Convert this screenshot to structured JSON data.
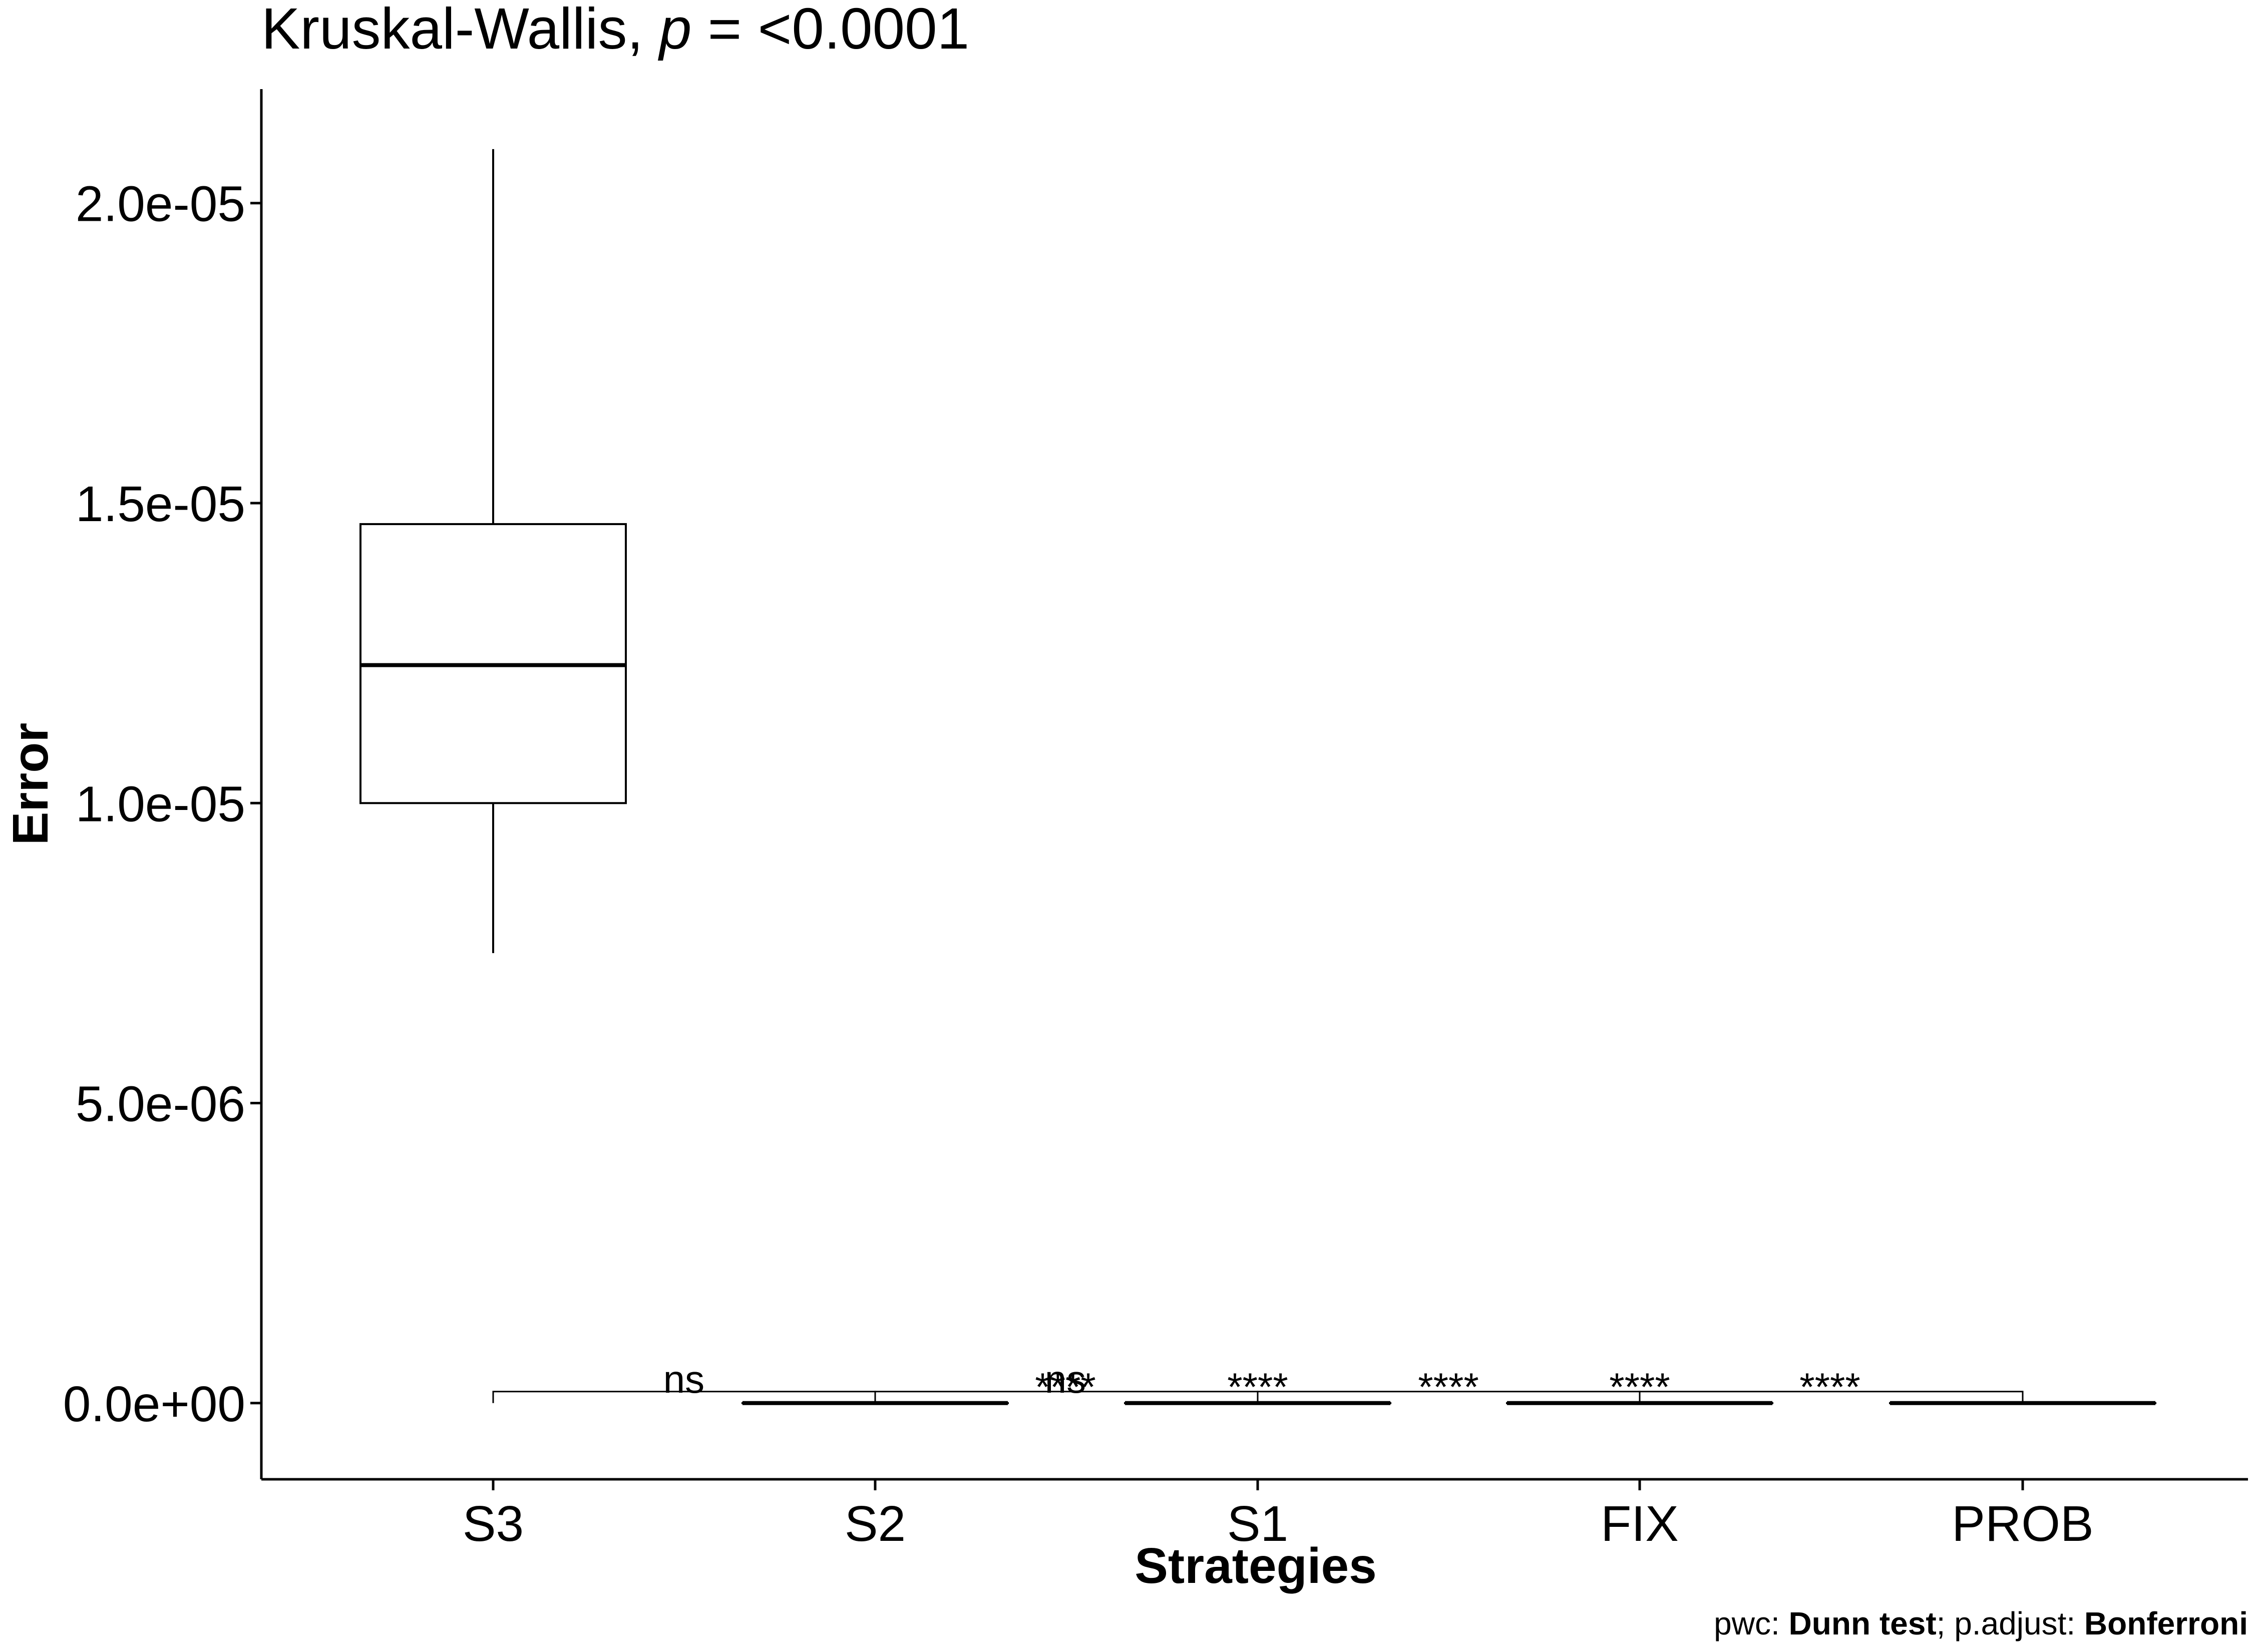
{
  "chart_data": {
    "type": "box",
    "title": {
      "prefix": "Kruskal-Wallis, ",
      "p_symbol": "p",
      "suffix": " = <0.0001"
    },
    "xlabel": "Strategies",
    "ylabel": "Error",
    "categories": [
      "S3",
      "S2",
      "S1",
      "FIX",
      "PROB"
    ],
    "ylim": [
      -1.27e-06,
      2.19e-05
    ],
    "yticks": [
      0,
      5e-06,
      1e-05,
      1.5e-05,
      2e-05
    ],
    "ytick_labels": [
      "0.0e+00",
      "5.0e-06",
      "1.0e-05",
      "1.5e-05",
      "2.0e-05"
    ],
    "boxes": [
      {
        "category": "S3",
        "min": 7.5e-06,
        "q1": 1e-05,
        "median": 1.23e-05,
        "q3": 1.465e-05,
        "max": 2.09e-05
      },
      {
        "category": "S2",
        "min": 0,
        "q1": 0,
        "median": 0,
        "q3": 0,
        "max": 0
      },
      {
        "category": "S1",
        "min": 0,
        "q1": 0,
        "median": 0,
        "q3": 0,
        "max": 0
      },
      {
        "category": "FIX",
        "min": 0,
        "q1": 0,
        "median": 0,
        "q3": 0,
        "max": 0
      },
      {
        "category": "PROB",
        "min": 0,
        "q1": 0,
        "median": 0,
        "q3": 0,
        "max": 0
      }
    ],
    "comparisons": [
      {
        "group1": "S3",
        "group2": "S2",
        "label": "ns"
      },
      {
        "group1": "S2",
        "group2": "S1",
        "label": "ns"
      },
      {
        "group1": "S1",
        "group2": "FIX",
        "label": "****"
      },
      {
        "group1": "FIX",
        "group2": "PROB",
        "label": "****"
      }
    ],
    "extra_significance_labels": [
      {
        "between": [
          "S2",
          "S1"
        ],
        "label": "****"
      },
      {
        "at": "S1",
        "label": "****"
      },
      {
        "at": "FIX",
        "label": "****"
      }
    ],
    "caption": {
      "pwc_prefix": "pwc: ",
      "pwc_method": "Dunn test",
      "adjust_prefix": "; p.adjust: ",
      "adjust_method": "Bonferroni"
    }
  }
}
